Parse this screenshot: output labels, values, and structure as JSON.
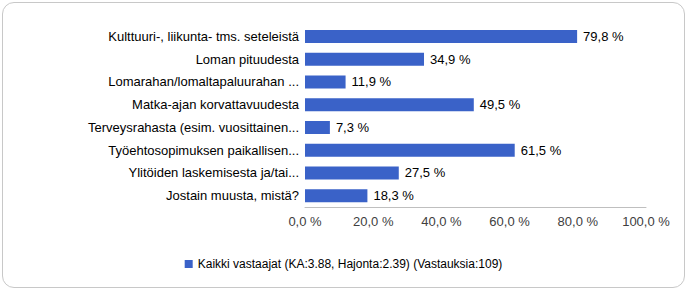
{
  "chart_data": {
    "type": "bar",
    "orientation": "horizontal",
    "categories": [
      "Kulttuuri-, liikunta- tms. seteleistä",
      "Loman pituudesta",
      "Lomarahan/lomaltapaluurahan ...",
      "Matka-ajan korvattavuudesta",
      "Terveysrahasta (esim. vuosittainen...",
      "Työehtosopimuksen paikallisen...",
      "Ylitöiden laskemisesta ja/tai...",
      "Jostain muusta, mistä?"
    ],
    "series": [
      {
        "name": "Kaikki vastaajat (KA:3.88, Hajonta:2.39) (Vastauksia:109)",
        "color": "#3a62c8",
        "values": [
          79.8,
          34.9,
          11.9,
          49.5,
          7.3,
          61.5,
          27.5,
          18.3
        ],
        "value_labels": [
          "79,8 %",
          "34,9 %",
          "11,9 %",
          "49,5 %",
          "7,3 %",
          "61,5 %",
          "27,5 %",
          "18,3 %"
        ]
      }
    ],
    "xlim": [
      0,
      100
    ],
    "xticks": [
      {
        "value": 0,
        "label": "0,0 %"
      },
      {
        "value": 20,
        "label": "20,0 %"
      },
      {
        "value": 40,
        "label": "40,0 %"
      },
      {
        "value": 60,
        "label": "60,0 %"
      },
      {
        "value": 80,
        "label": "80,0 %"
      },
      {
        "value": 100,
        "label": "100,0 %"
      }
    ],
    "data_labels": true,
    "grid": false,
    "legend": "bottom"
  }
}
